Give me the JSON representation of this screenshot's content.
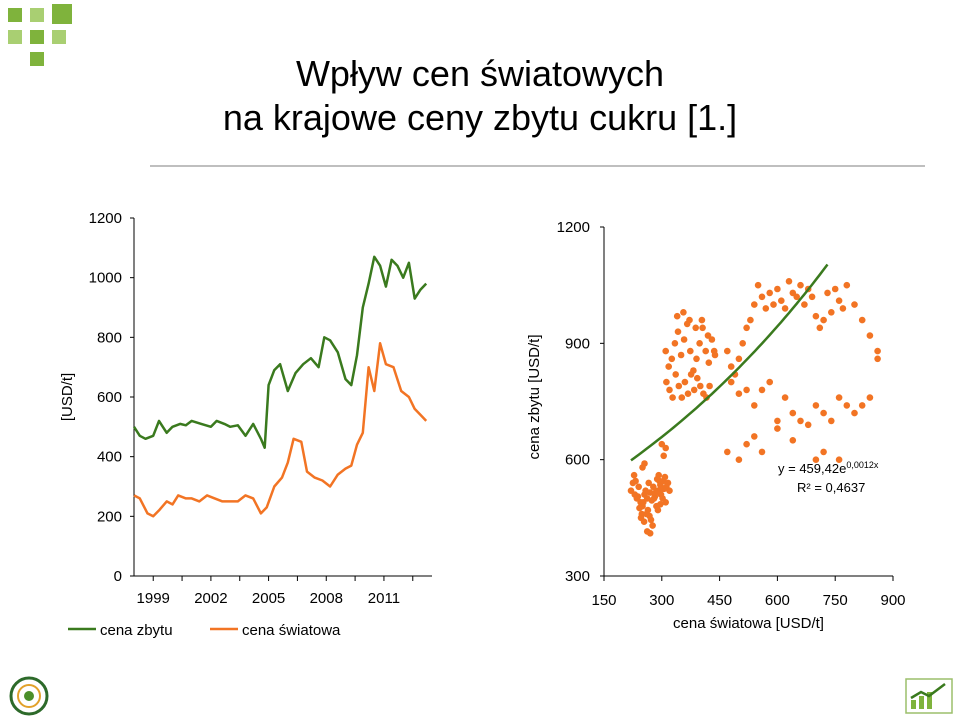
{
  "title": {
    "line1": "Wpływ cen światowych",
    "line2": "na krajowe ceny zbytu cukru [1.]"
  },
  "colors": {
    "green": "#3a7a1e",
    "orange": "#f27424",
    "deco": "#7fb33c",
    "rule": "#bfbfbf"
  },
  "chart_data": [
    {
      "type": "line",
      "ylabel": "[USD/t]",
      "ylim": [
        0,
        1200
      ],
      "y_ticks": [
        "0",
        "200",
        "400",
        "600",
        "800",
        "1000",
        "1200"
      ],
      "x_ticks": [
        "1999",
        "2002",
        "2005",
        "2008",
        "2011"
      ],
      "xlim": [
        1998,
        2013.5
      ],
      "legend_position": "bottom",
      "series": [
        {
          "name": "cena zbytu",
          "x": [
            1998.0,
            1998.3,
            1998.6,
            1999.0,
            1999.3,
            1999.7,
            2000.0,
            2000.4,
            2000.7,
            2001.0,
            2001.5,
            2002.0,
            2002.3,
            2002.7,
            2003.0,
            2003.4,
            2003.8,
            2004.2,
            2004.6,
            2004.8,
            2005.0,
            2005.3,
            2005.6,
            2006.0,
            2006.4,
            2006.8,
            2007.2,
            2007.6,
            2007.9,
            2008.2,
            2008.6,
            2009.0,
            2009.3,
            2009.6,
            2009.9,
            2010.2,
            2010.5,
            2010.8,
            2011.1,
            2011.4,
            2011.7,
            2012.0,
            2012.3,
            2012.6,
            2012.9,
            2013.2
          ],
          "values": [
            500,
            470,
            460,
            470,
            520,
            480,
            500,
            510,
            505,
            520,
            510,
            500,
            520,
            510,
            500,
            505,
            470,
            510,
            460,
            430,
            640,
            690,
            710,
            620,
            680,
            710,
            730,
            700,
            800,
            790,
            750,
            660,
            640,
            740,
            900,
            980,
            1070,
            1040,
            970,
            1060,
            1040,
            1000,
            1050,
            930,
            960,
            980
          ]
        },
        {
          "name": "cena światowa",
          "x": [
            1998.0,
            1998.3,
            1998.7,
            1999.0,
            1999.3,
            1999.7,
            2000.0,
            2000.3,
            2000.7,
            2001.0,
            2001.4,
            2001.8,
            2002.2,
            2002.6,
            2003.0,
            2003.4,
            2003.8,
            2004.2,
            2004.6,
            2004.9,
            2005.3,
            2005.7,
            2006.0,
            2006.3,
            2006.7,
            2007.0,
            2007.4,
            2007.8,
            2008.2,
            2008.6,
            2009.0,
            2009.3,
            2009.6,
            2009.9,
            2010.2,
            2010.5,
            2010.8,
            2011.1,
            2011.5,
            2011.9,
            2012.3,
            2012.6,
            2012.9,
            2013.2
          ],
          "values": [
            270,
            260,
            210,
            200,
            220,
            250,
            240,
            270,
            260,
            260,
            250,
            270,
            260,
            250,
            250,
            250,
            270,
            260,
            210,
            230,
            300,
            330,
            380,
            460,
            450,
            350,
            330,
            320,
            300,
            340,
            360,
            370,
            440,
            480,
            700,
            620,
            780,
            710,
            700,
            620,
            600,
            560,
            540,
            520
          ]
        }
      ]
    },
    {
      "type": "scatter",
      "xlabel": "cena światowa [USD/t]",
      "ylabel": "cena  zbytu [USD/t]",
      "xlim": [
        150,
        900
      ],
      "ylim": [
        300,
        1200
      ],
      "x_ticks": [
        "150",
        "300",
        "450",
        "600",
        "750",
        "900"
      ],
      "y_ticks": [
        "300",
        "600",
        "900",
        "1200"
      ],
      "trendline": {
        "label": "y = 459,42e",
        "exponent": "0,0012x",
        "r2": "R² = 0,4637",
        "a": 459.42,
        "b": 0.0012,
        "x_range": [
          220,
          730
        ]
      },
      "points": [
        [
          220,
          520
        ],
        [
          225,
          540
        ],
        [
          230,
          510
        ],
        [
          235,
          500
        ],
        [
          240,
          530
        ],
        [
          245,
          490
        ],
        [
          250,
          480
        ],
        [
          255,
          510
        ],
        [
          228,
          560
        ],
        [
          232,
          545
        ],
        [
          238,
          505
        ],
        [
          242,
          475
        ],
        [
          248,
          460
        ],
        [
          252,
          490
        ],
        [
          258,
          520
        ],
        [
          262,
          500
        ],
        [
          266,
          540
        ],
        [
          270,
          515
        ],
        [
          274,
          495
        ],
        [
          278,
          530
        ],
        [
          282,
          505
        ],
        [
          286,
          480
        ],
        [
          290,
          520
        ],
        [
          294,
          545
        ],
        [
          298,
          510
        ],
        [
          302,
          500
        ],
        [
          306,
          525
        ],
        [
          310,
          490
        ],
        [
          260,
          460
        ],
        [
          264,
          470
        ],
        [
          268,
          455
        ],
        [
          272,
          445
        ],
        [
          276,
          430
        ],
        [
          280,
          500
        ],
        [
          284,
          515
        ],
        [
          288,
          550
        ],
        [
          292,
          560
        ],
        [
          296,
          535
        ],
        [
          300,
          525
        ],
        [
          304,
          545
        ],
        [
          308,
          555
        ],
        [
          312,
          530
        ],
        [
          316,
          540
        ],
        [
          320,
          520
        ],
        [
          246,
          450
        ],
        [
          254,
          440
        ],
        [
          262,
          415
        ],
        [
          270,
          410
        ],
        [
          290,
          470
        ],
        [
          296,
          485
        ],
        [
          300,
          640
        ],
        [
          305,
          610
        ],
        [
          310,
          630
        ],
        [
          255,
          590
        ],
        [
          250,
          580
        ],
        [
          310,
          880
        ],
        [
          318,
          840
        ],
        [
          326,
          860
        ],
        [
          334,
          900
        ],
        [
          342,
          930
        ],
        [
          350,
          870
        ],
        [
          358,
          910
        ],
        [
          366,
          950
        ],
        [
          374,
          880
        ],
        [
          382,
          830
        ],
        [
          390,
          860
        ],
        [
          398,
          900
        ],
        [
          406,
          940
        ],
        [
          414,
          880
        ],
        [
          422,
          850
        ],
        [
          430,
          910
        ],
        [
          438,
          870
        ],
        [
          312,
          800
        ],
        [
          320,
          780
        ],
        [
          328,
          760
        ],
        [
          336,
          820
        ],
        [
          344,
          790
        ],
        [
          352,
          760
        ],
        [
          360,
          800
        ],
        [
          368,
          770
        ],
        [
          376,
          820
        ],
        [
          384,
          780
        ],
        [
          392,
          810
        ],
        [
          400,
          790
        ],
        [
          408,
          770
        ],
        [
          416,
          760
        ],
        [
          424,
          790
        ],
        [
          340,
          970
        ],
        [
          356,
          980
        ],
        [
          372,
          960
        ],
        [
          388,
          940
        ],
        [
          404,
          960
        ],
        [
          420,
          920
        ],
        [
          436,
          880
        ],
        [
          470,
          880
        ],
        [
          480,
          840
        ],
        [
          490,
          820
        ],
        [
          500,
          860
        ],
        [
          510,
          900
        ],
        [
          520,
          940
        ],
        [
          530,
          960
        ],
        [
          540,
          1000
        ],
        [
          550,
          1050
        ],
        [
          560,
          1020
        ],
        [
          570,
          990
        ],
        [
          580,
          1030
        ],
        [
          590,
          1000
        ],
        [
          600,
          1040
        ],
        [
          610,
          1010
        ],
        [
          620,
          990
        ],
        [
          630,
          1060
        ],
        [
          640,
          1030
        ],
        [
          650,
          1020
        ],
        [
          660,
          1050
        ],
        [
          670,
          1000
        ],
        [
          680,
          1040
        ],
        [
          690,
          1020
        ],
        [
          700,
          970
        ],
        [
          710,
          940
        ],
        [
          720,
          960
        ],
        [
          730,
          1030
        ],
        [
          740,
          980
        ],
        [
          750,
          1040
        ],
        [
          760,
          1010
        ],
        [
          770,
          990
        ],
        [
          780,
          1050
        ],
        [
          800,
          1000
        ],
        [
          820,
          960
        ],
        [
          840,
          920
        ],
        [
          860,
          880
        ],
        [
          480,
          800
        ],
        [
          500,
          770
        ],
        [
          520,
          780
        ],
        [
          540,
          740
        ],
        [
          560,
          780
        ],
        [
          580,
          800
        ],
        [
          600,
          700
        ],
        [
          620,
          760
        ],
        [
          640,
          720
        ],
        [
          660,
          700
        ],
        [
          680,
          690
        ],
        [
          700,
          740
        ],
        [
          720,
          720
        ],
        [
          740,
          700
        ],
        [
          760,
          760
        ],
        [
          780,
          740
        ],
        [
          800,
          720
        ],
        [
          820,
          740
        ],
        [
          840,
          760
        ],
        [
          860,
          860
        ],
        [
          520,
          640
        ],
        [
          540,
          660
        ],
        [
          560,
          620
        ],
        [
          600,
          680
        ],
        [
          640,
          650
        ],
        [
          700,
          600
        ],
        [
          720,
          620
        ],
        [
          760,
          600
        ],
        [
          470,
          620
        ],
        [
          500,
          600
        ]
      ]
    }
  ]
}
